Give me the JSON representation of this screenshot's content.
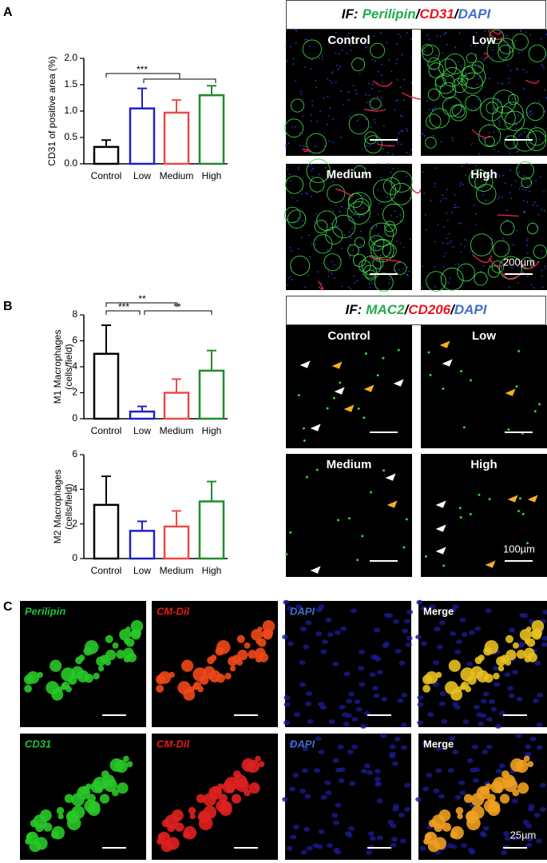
{
  "panel_labels": [
    "A",
    "B",
    "C"
  ],
  "chart_data": [
    {
      "type": "bar",
      "ylabel": [
        "CD31 of positive area (%)"
      ],
      "categories": [
        "Control",
        "Low",
        "Medium",
        "High"
      ],
      "colors": [
        "#000000",
        "#1f1fc8",
        "#f04848",
        "#1e8c2a"
      ],
      "values": [
        0.32,
        1.05,
        0.97,
        1.3
      ],
      "errors": [
        0.13,
        0.38,
        0.24,
        0.18
      ],
      "ylim": [
        0,
        2
      ],
      "yticks": [
        {
          "value": 0,
          "label": "0.0"
        },
        {
          "value": 0.5,
          "label": "0.5"
        },
        {
          "value": 1,
          "label": "1.0"
        },
        {
          "value": 1.5,
          "label": "1.5"
        },
        {
          "value": 2,
          "label": "2.0"
        }
      ],
      "significance": [
        "***"
      ]
    },
    {
      "type": "bar",
      "ylabel": [
        "M1 Macrophages",
        "(cells/field)"
      ],
      "categories": [
        "Control",
        "Low",
        "Medium",
        "High"
      ],
      "colors": [
        "#000000",
        "#1f1fc8",
        "#f04848",
        "#1e8c2a"
      ],
      "values": [
        5.0,
        0.55,
        2.0,
        3.7
      ],
      "errors": [
        2.2,
        0.4,
        1.05,
        1.55
      ],
      "ylim": [
        0,
        8
      ],
      "yticks": [
        0,
        2,
        4,
        6,
        8
      ],
      "significance": [
        "**",
        "***",
        "**"
      ]
    },
    {
      "type": "bar",
      "ylabel": [
        "M2 Macrophages",
        "(cells/field)"
      ],
      "categories": [
        "Control",
        "Low",
        "Medium",
        "High"
      ],
      "colors": [
        "#000000",
        "#1f1fc8",
        "#f04848",
        "#1e8c2a"
      ],
      "values": [
        3.1,
        1.6,
        1.85,
        3.3
      ],
      "errors": [
        1.65,
        0.55,
        0.9,
        1.15
      ],
      "ylim": [
        0,
        6
      ],
      "yticks": [
        0,
        2,
        4,
        6
      ],
      "significance": []
    }
  ],
  "if_panels": [
    {
      "title_parts": [
        "IF:",
        "Perilipin",
        "/",
        "CD31",
        "/",
        "DAPI"
      ],
      "labels": [
        "Control",
        "Low",
        "Medium",
        "High"
      ],
      "scale": "200µm"
    },
    {
      "title_parts": [
        "IF:",
        "MAC2",
        "/",
        "CD206",
        "/",
        "DAPI"
      ],
      "labels": [
        "Control",
        "Low",
        "Medium",
        "High"
      ],
      "scale": "100µm"
    }
  ],
  "panel_c": {
    "labels": [
      [
        "Perilipin",
        "CM-Dil",
        "DAPI",
        "Merge"
      ],
      [
        "CD31",
        "CM-Dil",
        "DAPI",
        "Merge"
      ]
    ],
    "scale": "25µm"
  }
}
